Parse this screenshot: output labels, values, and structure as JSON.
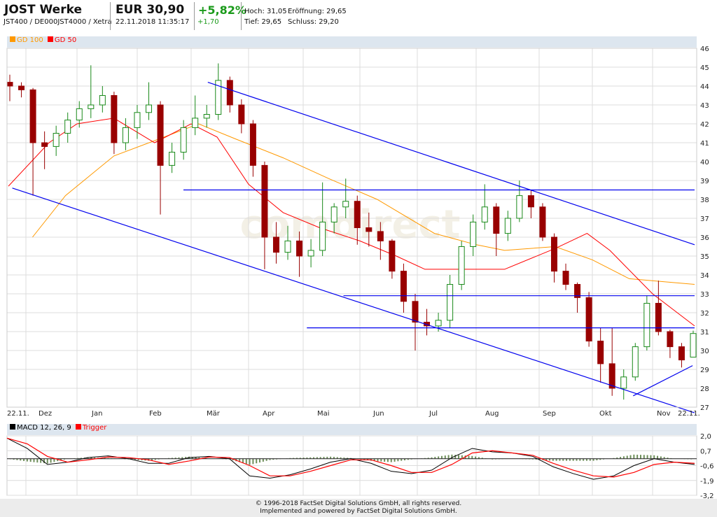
{
  "header": {
    "title": "JOST Werke",
    "subtitle": "JST400 / DE000JST4000 / Xetra",
    "price": "EUR 30,90",
    "timestamp": "22.11.2018 11:35:17",
    "change_pct": "+5,82%",
    "change_abs": "+1,70",
    "high": "Hoch: 31,05",
    "open": "Eröffnung: 29,65",
    "low": "Tief: 29,65",
    "close": "Schluss: 29,20"
  },
  "watermark": "comdirect",
  "legend": {
    "gd100": "GD 100",
    "gd50": "GD 50",
    "macd": "MACD 12, 26, 9",
    "trigger": "Trigger"
  },
  "colors": {
    "gd100": "#ff9900",
    "gd50": "#ff0000",
    "up": "#1a8a1a",
    "down": "#990000",
    "trend": "#0000ee",
    "macd": "#000000",
    "trigger": "#ff0000",
    "histogram": "#6e8f5a"
  },
  "footer": {
    "line1": "© 1996-2018 FactSet Digital Solutions GmbH, all rights reserved.",
    "line2": "Implemented and powered by FactSet Digital Solutions GmbH."
  },
  "chart_data": [
    {
      "type": "candlestick",
      "period": [
        "22.11.2017",
        "22.11.2018"
      ],
      "x_tick_labels": [
        "22.11.",
        "Dez",
        "Jan",
        "Feb",
        "Mär",
        "Apr",
        "Mai",
        "Jun",
        "Jul",
        "Aug",
        "Sep",
        "Okt",
        "Nov",
        "22.11."
      ],
      "y_ticks": [
        27,
        28,
        29,
        30,
        31,
        32,
        33,
        34,
        35,
        36,
        37,
        38,
        39,
        40,
        41,
        42,
        43,
        44,
        45,
        46
      ],
      "ylim": [
        27,
        46
      ],
      "grid": true,
      "candles_ohlc": [
        [
          44.2,
          44.6,
          43.2,
          44.0
        ],
        [
          44.0,
          44.2,
          43.4,
          43.8
        ],
        [
          43.8,
          43.9,
          38.2,
          41.0
        ],
        [
          41.0,
          41.6,
          39.6,
          40.8
        ],
        [
          40.8,
          41.9,
          40.3,
          41.5
        ],
        [
          41.5,
          42.6,
          41.0,
          42.2
        ],
        [
          42.2,
          43.2,
          41.8,
          42.8
        ],
        [
          42.8,
          45.1,
          42.3,
          43.0
        ],
        [
          43.0,
          44.0,
          42.6,
          43.5
        ],
        [
          43.5,
          43.7,
          40.4,
          41.0
        ],
        [
          41.0,
          42.3,
          40.6,
          41.8
        ],
        [
          41.8,
          43.0,
          41.2,
          42.6
        ],
        [
          42.6,
          44.2,
          42.2,
          43.0
        ],
        [
          43.0,
          43.2,
          37.2,
          39.8
        ],
        [
          39.8,
          41.0,
          39.4,
          40.5
        ],
        [
          40.5,
          42.2,
          40.1,
          41.8
        ],
        [
          41.8,
          43.5,
          41.4,
          42.3
        ],
        [
          42.3,
          43.0,
          41.8,
          42.5
        ],
        [
          42.5,
          45.2,
          42.2,
          44.3
        ],
        [
          44.3,
          44.5,
          42.6,
          43.0
        ],
        [
          43.0,
          43.3,
          41.5,
          42.0
        ],
        [
          42.0,
          42.2,
          39.2,
          39.8
        ],
        [
          39.8,
          40.0,
          34.3,
          36.0
        ],
        [
          36.0,
          36.8,
          34.6,
          35.2
        ],
        [
          35.2,
          36.6,
          34.8,
          35.8
        ],
        [
          35.8,
          36.3,
          33.9,
          35.0
        ],
        [
          35.0,
          35.9,
          34.4,
          35.3
        ],
        [
          35.3,
          38.9,
          35.0,
          36.8
        ],
        [
          36.8,
          37.8,
          36.2,
          37.6
        ],
        [
          37.6,
          39.1,
          37.0,
          37.9
        ],
        [
          37.9,
          38.2,
          35.6,
          36.5
        ],
        [
          36.5,
          37.3,
          35.5,
          36.3
        ],
        [
          36.3,
          36.8,
          34.8,
          35.8
        ],
        [
          35.8,
          35.9,
          33.8,
          34.2
        ],
        [
          34.2,
          34.6,
          32.0,
          32.6
        ],
        [
          32.6,
          33.0,
          30.0,
          31.5
        ],
        [
          31.5,
          32.2,
          30.8,
          31.3
        ],
        [
          31.3,
          32.0,
          31.0,
          31.6
        ],
        [
          31.6,
          34.0,
          31.2,
          33.5
        ],
        [
          33.5,
          35.8,
          33.2,
          35.5
        ],
        [
          35.5,
          37.2,
          35.0,
          36.8
        ],
        [
          36.8,
          38.8,
          36.4,
          37.6
        ],
        [
          37.6,
          37.8,
          35.0,
          36.2
        ],
        [
          36.2,
          37.4,
          35.8,
          37.0
        ],
        [
          37.0,
          39.0,
          36.8,
          38.2
        ],
        [
          38.2,
          38.5,
          37.0,
          37.6
        ],
        [
          37.6,
          37.8,
          35.8,
          36.0
        ],
        [
          36.0,
          36.2,
          33.6,
          34.2
        ],
        [
          34.2,
          34.6,
          33.2,
          33.5
        ],
        [
          33.5,
          33.6,
          32.0,
          32.8
        ],
        [
          32.8,
          33.1,
          30.2,
          30.5
        ],
        [
          30.5,
          31.2,
          28.3,
          29.3
        ],
        [
          29.3,
          31.2,
          27.6,
          28.0
        ],
        [
          28.0,
          29.0,
          27.4,
          28.6
        ],
        [
          28.6,
          30.4,
          28.4,
          30.2
        ],
        [
          30.2,
          32.9,
          30.0,
          32.5
        ],
        [
          32.5,
          33.7,
          30.8,
          31.0
        ],
        [
          31.0,
          31.1,
          29.6,
          30.2
        ],
        [
          30.2,
          30.4,
          29.1,
          29.5
        ],
        [
          29.65,
          31.05,
          29.65,
          30.9
        ]
      ],
      "series": [
        {
          "name": "GD 100",
          "points": [
            [
              "2017-12-05",
              36.0
            ],
            [
              "2017-12-25",
              38.2
            ],
            [
              "2018-01-20",
              40.3
            ],
            [
              "2018-02-15",
              41.3
            ],
            [
              "2018-03-05",
              42.0
            ],
            [
              "2018-03-25",
              41.2
            ],
            [
              "2018-04-20",
              40.2
            ],
            [
              "2018-05-15",
              39.1
            ],
            [
              "2018-06-10",
              38.0
            ],
            [
              "2018-07-10",
              36.2
            ],
            [
              "2018-08-01",
              35.6
            ],
            [
              "2018-08-15",
              35.3
            ],
            [
              "2018-09-10",
              35.5
            ],
            [
              "2018-10-01",
              34.8
            ],
            [
              "2018-10-20",
              33.8
            ],
            [
              "2018-11-22",
              33.5
            ]
          ]
        },
        {
          "name": "GD 50",
          "points": [
            [
              "2017-11-22",
              38.7
            ],
            [
              "2017-12-15",
              41.0
            ],
            [
              "2018-01-01",
              42.0
            ],
            [
              "2018-01-20",
              42.3
            ],
            [
              "2018-02-10",
              41.0
            ],
            [
              "2018-03-01",
              42.0
            ],
            [
              "2018-03-15",
              41.3
            ],
            [
              "2018-04-01",
              38.8
            ],
            [
              "2018-04-20",
              37.3
            ],
            [
              "2018-05-10",
              36.5
            ],
            [
              "2018-06-01",
              35.8
            ],
            [
              "2018-06-20",
              35.0
            ],
            [
              "2018-07-05",
              34.3
            ],
            [
              "2018-08-15",
              34.3
            ],
            [
              "2018-09-10",
              35.4
            ],
            [
              "2018-09-28",
              36.2
            ],
            [
              "2018-10-10",
              35.3
            ],
            [
              "2018-11-01",
              33.0
            ],
            [
              "2018-11-22",
              31.3
            ]
          ]
        }
      ],
      "trendlines": [
        {
          "from": [
            "2018-03-10",
            44.2
          ],
          "to": [
            "2018-11-22",
            35.6
          ]
        },
        {
          "from": [
            "2017-11-24",
            38.6
          ],
          "to": [
            "2018-11-22",
            26.7
          ]
        },
        {
          "from": [
            "2018-02-25",
            38.5
          ],
          "to": [
            "2018-11-22",
            38.5
          ]
        },
        {
          "from": [
            "2018-05-23",
            32.9
          ],
          "to": [
            "2018-11-22",
            32.9
          ]
        },
        {
          "from": [
            "2018-05-03",
            31.2
          ],
          "to": [
            "2018-11-22",
            31.2
          ]
        },
        {
          "from": [
            "2018-10-22",
            27.6
          ],
          "to": [
            "2018-11-21",
            29.2
          ]
        }
      ]
    },
    {
      "type": "line",
      "y_ticks": [
        "2,0",
        "0,7",
        "-0,6",
        "-1,9",
        "-3,2"
      ],
      "ylim": [
        -3.2,
        2.0
      ],
      "series": [
        {
          "name": "MACD 12, 26, 9",
          "values": [
            1.8,
            0.9,
            -0.5,
            -0.3,
            0.1,
            0.25,
            0,
            -0.4,
            -0.4,
            0.1,
            0.2,
            0,
            -1.5,
            -1.7,
            -1.4,
            -0.9,
            -0.3,
            0,
            -0.4,
            -1.1,
            -1.3,
            -1.0,
            0.1,
            0.9,
            0.6,
            0.5,
            0.2,
            -0.7,
            -1.3,
            -1.8,
            -1.5,
            -0.6,
            0,
            -0.3,
            -0.5
          ]
        },
        {
          "name": "Trigger",
          "values": [
            1.8,
            1.3,
            0.2,
            -0.3,
            -0.1,
            0.15,
            0.1,
            -0.1,
            -0.5,
            -0.2,
            0.15,
            0.1,
            -0.6,
            -1.5,
            -1.5,
            -1.1,
            -0.6,
            -0.1,
            -0.1,
            -0.6,
            -1.2,
            -1.2,
            -0.5,
            0.5,
            0.7,
            0.5,
            0.3,
            -0.4,
            -1.0,
            -1.5,
            -1.6,
            -1.2,
            -0.5,
            -0.3,
            -0.4
          ]
        }
      ]
    }
  ]
}
